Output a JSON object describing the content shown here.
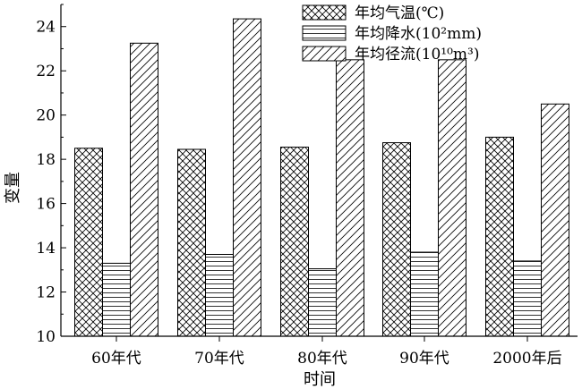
{
  "chart_data": {
    "type": "bar",
    "categories": [
      "60年代",
      "70年代",
      "80年代",
      "90年代",
      "2000年后"
    ],
    "series": [
      {
        "name": "年均气温(℃)",
        "values": [
          18.5,
          18.45,
          18.55,
          18.75,
          19.0
        ],
        "pattern": "crosshatch"
      },
      {
        "name": "年均降水(10²mm)",
        "values": [
          13.3,
          13.7,
          13.05,
          13.8,
          13.4
        ],
        "pattern": "horizontal"
      },
      {
        "name": "年均径流(10¹⁰m³)",
        "values": [
          23.25,
          24.35,
          22.5,
          22.5,
          20.5
        ],
        "pattern": "diagonal"
      }
    ],
    "xlabel": "时间",
    "ylabel": "变量",
    "ylim": [
      10,
      25
    ],
    "yticks": [
      "10",
      "12",
      "14",
      "16",
      "18",
      "20",
      "22",
      "24"
    ],
    "legend_position": "top-right",
    "grid": false
  }
}
